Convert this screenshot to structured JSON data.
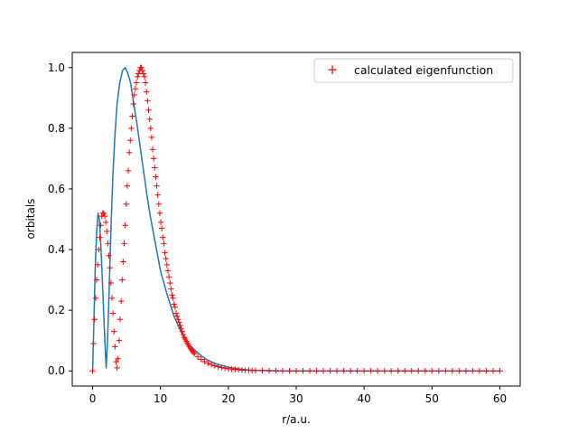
{
  "chart_data": {
    "type": "line",
    "title": "",
    "xlabel": "r/a.u.",
    "ylabel": "orbitals",
    "xlim": [
      -3,
      63
    ],
    "ylim": [
      -0.05,
      1.05
    ],
    "xticks": [
      0,
      10,
      20,
      30,
      40,
      50,
      60
    ],
    "yticks": [
      0.0,
      0.2,
      0.4,
      0.6,
      0.8,
      1.0
    ],
    "xtick_labels": [
      "0",
      "10",
      "20",
      "30",
      "40",
      "50",
      "60"
    ],
    "ytick_labels": [
      "0.0",
      "0.2",
      "0.4",
      "0.6",
      "0.8",
      "1.0"
    ],
    "grid": false,
    "legend_position": "top-right",
    "colors": {
      "line": "#1f77b4",
      "markers": "#ff0000",
      "axes": "#000000"
    },
    "series": [
      {
        "name": "",
        "kind": "line",
        "x": [
          0,
          0.2,
          0.4,
          0.6,
          0.8,
          1.0,
          1.2,
          1.4,
          1.6,
          1.8,
          2.0,
          2.2,
          2.4,
          2.6,
          2.8,
          3.0,
          3.3,
          3.6,
          4.0,
          4.4,
          4.8,
          5.2,
          5.6,
          6.0,
          6.5,
          7.0,
          7.5,
          8.0,
          8.5,
          9.0,
          9.5,
          10.0,
          11.0,
          12.0,
          13.0,
          14.0,
          15.0,
          16.0,
          17.0,
          18.0,
          19.0,
          20.0,
          21.0,
          22.0,
          23.0,
          24.0,
          26.0,
          28.0,
          30.0,
          35.0,
          40.0,
          45.0,
          50.0,
          55.0,
          60.0
        ],
        "y": [
          0.0,
          0.17,
          0.35,
          0.46,
          0.52,
          0.5,
          0.42,
          0.32,
          0.21,
          0.1,
          0.01,
          0.1,
          0.24,
          0.39,
          0.53,
          0.65,
          0.78,
          0.88,
          0.95,
          0.99,
          1.0,
          0.98,
          0.95,
          0.89,
          0.82,
          0.74,
          0.66,
          0.58,
          0.51,
          0.45,
          0.39,
          0.33,
          0.25,
          0.18,
          0.13,
          0.09,
          0.07,
          0.05,
          0.035,
          0.025,
          0.018,
          0.012,
          0.008,
          0.005,
          0.003,
          0.002,
          0.001,
          0.0,
          0.0,
          0.0,
          0.0,
          0.0,
          0.0,
          0.0,
          0.0
        ]
      },
      {
        "name": "calculated eigenfunction",
        "kind": "markers",
        "marker": "+",
        "x": [
          0,
          0.15,
          0.3,
          0.45,
          0.6,
          0.75,
          0.9,
          1.05,
          1.2,
          1.35,
          1.5,
          1.65,
          1.8,
          1.95,
          2.1,
          2.25,
          2.4,
          2.55,
          2.7,
          2.85,
          3.0,
          3.15,
          3.3,
          3.45,
          3.6,
          3.75,
          3.9,
          4.05,
          4.2,
          4.35,
          4.5,
          4.65,
          4.8,
          4.95,
          5.1,
          5.25,
          5.4,
          5.55,
          5.7,
          5.85,
          6.0,
          6.15,
          6.3,
          6.45,
          6.6,
          6.75,
          6.9,
          7.05,
          7.2,
          7.35,
          7.5,
          7.65,
          7.8,
          7.95,
          8.1,
          8.25,
          8.4,
          8.55,
          8.7,
          8.85,
          9.0,
          9.15,
          9.3,
          9.45,
          9.6,
          9.75,
          9.9,
          10.05,
          10.2,
          10.35,
          10.5,
          10.65,
          10.8,
          10.95,
          11.1,
          11.25,
          11.4,
          11.55,
          11.7,
          11.85,
          12.0,
          12.15,
          12.3,
          12.45,
          12.6,
          12.75,
          12.9,
          13.05,
          13.2,
          13.35,
          13.5,
          13.65,
          13.8,
          13.95,
          14.1,
          14.25,
          14.4,
          14.55,
          14.7,
          14.85,
          15.0,
          15.5,
          16.0,
          16.5,
          17.0,
          17.5,
          18.0,
          18.5,
          19.0,
          19.5,
          20.0,
          20.5,
          21.0,
          21.5,
          22.0,
          22.5,
          23.0,
          23.5,
          24.0,
          25.0,
          26.0,
          27.0,
          28.0,
          29.0,
          30.0,
          31.0,
          32.0,
          33.0,
          34.0,
          35.0,
          36.0,
          37.0,
          38.0,
          39.0,
          40.0,
          41.0,
          42.0,
          43.0,
          44.0,
          45.0,
          46.0,
          47.0,
          48.0,
          49.0,
          50.0,
          51.0,
          52.0,
          53.0,
          54.0,
          55.0,
          56.0,
          57.0,
          58.0,
          59.0,
          60.0
        ],
        "y": [
          0.0,
          0.09,
          0.17,
          0.24,
          0.3,
          0.35,
          0.4,
          0.44,
          0.48,
          0.51,
          0.52,
          0.52,
          0.51,
          0.49,
          0.46,
          0.42,
          0.38,
          0.34,
          0.29,
          0.24,
          0.19,
          0.13,
          0.08,
          0.03,
          0.01,
          0.04,
          0.1,
          0.17,
          0.23,
          0.3,
          0.36,
          0.42,
          0.48,
          0.55,
          0.61,
          0.66,
          0.72,
          0.76,
          0.8,
          0.84,
          0.88,
          0.91,
          0.93,
          0.95,
          0.97,
          0.98,
          0.99,
          1.0,
          1.0,
          0.99,
          0.98,
          0.97,
          0.95,
          0.92,
          0.89,
          0.86,
          0.83,
          0.8,
          0.77,
          0.73,
          0.7,
          0.67,
          0.64,
          0.61,
          0.58,
          0.55,
          0.52,
          0.49,
          0.47,
          0.44,
          0.42,
          0.39,
          0.37,
          0.35,
          0.33,
          0.31,
          0.29,
          0.27,
          0.25,
          0.24,
          0.22,
          0.21,
          0.19,
          0.18,
          0.17,
          0.16,
          0.15,
          0.14,
          0.13,
          0.12,
          0.11,
          0.105,
          0.098,
          0.092,
          0.086,
          0.08,
          0.075,
          0.07,
          0.065,
          0.061,
          0.057,
          0.046,
          0.038,
          0.031,
          0.025,
          0.021,
          0.017,
          0.014,
          0.011,
          0.009,
          0.007,
          0.006,
          0.005,
          0.004,
          0.003,
          0.002,
          0.002,
          0.001,
          0.001,
          0.001,
          0.0,
          0.0,
          0.0,
          0.0,
          0.0,
          0.0,
          0.0,
          0.0,
          0.0,
          0.0,
          0.0,
          0.0,
          0.0,
          0.0,
          0.0,
          0.0,
          0.0,
          0.0,
          0.0,
          0.0,
          0.0,
          0.0,
          0.0,
          0.0,
          0.0,
          0.0,
          0.0,
          0.0,
          0.0,
          0.0,
          0.0,
          0.0,
          0.0,
          0.0,
          0.0
        ]
      }
    ]
  }
}
